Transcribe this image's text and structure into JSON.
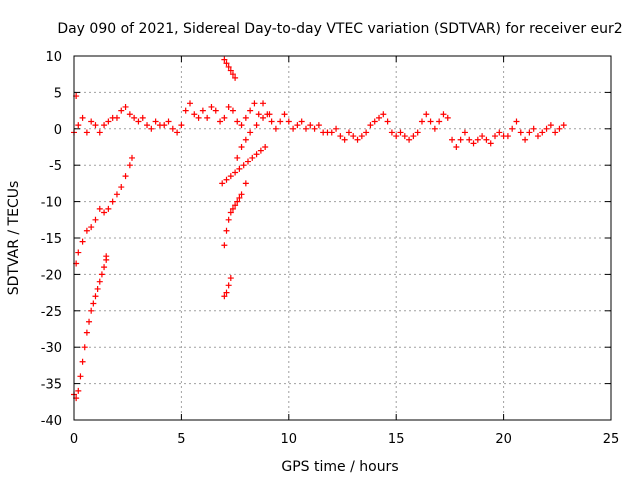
{
  "chart_data": {
    "type": "scatter",
    "title": "Day 090 of 2021, Sidereal Day-to-day VTEC variation (SDTVAR) for receiver eur2",
    "xlabel": "GPS time / hours",
    "ylabel": "SDTVAR / TECUs",
    "xlim": [
      0,
      25
    ],
    "ylim": [
      -40,
      10
    ],
    "x_ticks": [
      0,
      5,
      10,
      15,
      20,
      25
    ],
    "y_ticks": [
      10,
      5,
      0,
      -5,
      -10,
      -15,
      -20,
      -25,
      -30,
      -35,
      -40
    ],
    "x_tick_labels": [
      "0",
      "5",
      "10",
      "15",
      "20",
      "25"
    ],
    "y_tick_labels": [
      "10",
      "5",
      "0",
      "-5",
      "-10",
      "-15",
      "-20",
      "-25",
      "-30",
      "-35",
      "-40"
    ],
    "grid": true,
    "marker": "+",
    "color": "#ff0000",
    "series": [
      {
        "name": "main-band",
        "points": [
          [
            0.0,
            -0.5
          ],
          [
            0.1,
            4.5
          ],
          [
            0.2,
            0.5
          ],
          [
            0.4,
            1.5
          ],
          [
            0.6,
            -0.5
          ],
          [
            0.8,
            1.0
          ],
          [
            1.0,
            0.5
          ],
          [
            1.2,
            -0.5
          ],
          [
            1.4,
            0.5
          ],
          [
            1.6,
            1.0
          ],
          [
            1.8,
            1.5
          ],
          [
            2.0,
            1.5
          ],
          [
            2.2,
            2.5
          ],
          [
            2.4,
            3.0
          ],
          [
            2.6,
            2.0
          ],
          [
            2.8,
            1.5
          ],
          [
            3.0,
            1.0
          ],
          [
            3.2,
            1.5
          ],
          [
            3.4,
            0.5
          ],
          [
            3.6,
            0.0
          ],
          [
            3.8,
            1.0
          ],
          [
            4.0,
            0.5
          ],
          [
            4.2,
            0.5
          ],
          [
            4.4,
            1.0
          ],
          [
            4.6,
            0.0
          ],
          [
            4.8,
            -0.5
          ],
          [
            5.0,
            0.5
          ],
          [
            5.2,
            2.5
          ],
          [
            5.4,
            3.5
          ],
          [
            5.6,
            2.0
          ],
          [
            5.8,
            1.5
          ],
          [
            6.0,
            2.5
          ],
          [
            6.2,
            1.5
          ],
          [
            6.4,
            3.0
          ],
          [
            6.6,
            2.5
          ],
          [
            6.8,
            1.0
          ],
          [
            7.0,
            1.5
          ],
          [
            7.2,
            3.0
          ],
          [
            7.4,
            2.5
          ],
          [
            7.6,
            1.0
          ],
          [
            7.8,
            0.5
          ],
          [
            8.0,
            1.5
          ],
          [
            8.2,
            2.5
          ],
          [
            8.4,
            3.5
          ],
          [
            8.6,
            2.0
          ],
          [
            8.8,
            3.5
          ],
          [
            9.0,
            2.0
          ],
          [
            9.2,
            1.0
          ],
          [
            9.4,
            0.0
          ],
          [
            9.6,
            1.0
          ],
          [
            9.8,
            2.0
          ],
          [
            10.0,
            1.0
          ],
          [
            10.2,
            0.0
          ],
          [
            10.4,
            0.5
          ],
          [
            10.6,
            1.0
          ],
          [
            10.8,
            0.0
          ],
          [
            11.0,
            0.5
          ],
          [
            11.2,
            0.0
          ],
          [
            11.4,
            0.5
          ],
          [
            11.6,
            -0.5
          ],
          [
            11.8,
            -0.5
          ],
          [
            12.0,
            -0.5
          ],
          [
            12.2,
            0.0
          ],
          [
            12.4,
            -1.0
          ],
          [
            12.6,
            -1.5
          ],
          [
            12.8,
            -0.5
          ],
          [
            13.0,
            -1.0
          ],
          [
            13.2,
            -1.5
          ],
          [
            13.4,
            -1.0
          ],
          [
            13.6,
            -0.5
          ],
          [
            13.8,
            0.5
          ],
          [
            14.0,
            1.0
          ],
          [
            14.2,
            1.5
          ],
          [
            14.4,
            2.0
          ],
          [
            14.6,
            1.0
          ],
          [
            14.8,
            -0.5
          ],
          [
            15.0,
            -1.0
          ],
          [
            15.2,
            -0.5
          ],
          [
            15.4,
            -1.0
          ],
          [
            15.6,
            -1.5
          ],
          [
            15.8,
            -1.0
          ],
          [
            16.0,
            -0.5
          ],
          [
            16.2,
            1.0
          ],
          [
            16.4,
            2.0
          ],
          [
            16.6,
            1.0
          ],
          [
            16.8,
            0.0
          ],
          [
            17.0,
            1.0
          ],
          [
            17.2,
            2.0
          ],
          [
            17.4,
            1.5
          ],
          [
            17.6,
            -1.5
          ],
          [
            17.8,
            -2.5
          ],
          [
            18.0,
            -1.5
          ],
          [
            18.2,
            -0.5
          ],
          [
            18.4,
            -1.5
          ],
          [
            18.6,
            -2.0
          ],
          [
            18.8,
            -1.5
          ],
          [
            19.0,
            -1.0
          ],
          [
            19.2,
            -1.5
          ],
          [
            19.4,
            -2.0
          ],
          [
            19.6,
            -1.0
          ],
          [
            19.8,
            -0.5
          ],
          [
            20.0,
            -1.0
          ],
          [
            20.2,
            -1.0
          ],
          [
            20.4,
            0.0
          ],
          [
            20.6,
            1.0
          ],
          [
            20.8,
            -0.5
          ],
          [
            21.0,
            -1.5
          ],
          [
            21.2,
            -0.5
          ],
          [
            21.4,
            0.0
          ],
          [
            21.6,
            -1.0
          ],
          [
            21.8,
            -0.5
          ],
          [
            22.0,
            0.0
          ],
          [
            22.2,
            0.5
          ],
          [
            22.4,
            -0.5
          ],
          [
            22.6,
            0.0
          ],
          [
            22.8,
            0.5
          ]
        ]
      },
      {
        "name": "arc-upper-left",
        "points": [
          [
            0.1,
            -18.5
          ],
          [
            0.2,
            -17.0
          ],
          [
            0.4,
            -15.5
          ],
          [
            0.6,
            -14.0
          ],
          [
            0.8,
            -13.5
          ],
          [
            1.0,
            -12.5
          ],
          [
            1.2,
            -11.0
          ],
          [
            1.4,
            -11.5
          ],
          [
            1.6,
            -11.0
          ],
          [
            1.8,
            -10.0
          ],
          [
            2.0,
            -9.0
          ],
          [
            2.2,
            -8.0
          ],
          [
            2.4,
            -6.5
          ],
          [
            2.6,
            -5.0
          ],
          [
            2.7,
            -4.0
          ]
        ]
      },
      {
        "name": "arc-lower-left",
        "points": [
          [
            0.0,
            -36.5
          ],
          [
            0.1,
            -37.0
          ],
          [
            0.2,
            -36.0
          ],
          [
            0.3,
            -34.0
          ],
          [
            0.4,
            -32.0
          ],
          [
            0.5,
            -30.0
          ],
          [
            0.6,
            -28.0
          ],
          [
            0.7,
            -26.5
          ],
          [
            0.8,
            -25.0
          ],
          [
            0.9,
            -24.0
          ],
          [
            1.0,
            -23.0
          ],
          [
            1.1,
            -22.0
          ],
          [
            1.2,
            -21.0
          ],
          [
            1.3,
            -20.0
          ],
          [
            1.4,
            -19.0
          ],
          [
            1.5,
            -18.0
          ],
          [
            1.5,
            -17.5
          ]
        ]
      },
      {
        "name": "arc-mid-steep",
        "points": [
          [
            7.0,
            -16.0
          ],
          [
            7.1,
            -14.0
          ],
          [
            7.2,
            -12.5
          ],
          [
            7.3,
            -11.5
          ],
          [
            7.4,
            -11.0
          ],
          [
            7.5,
            -10.5
          ],
          [
            7.6,
            -10.0
          ],
          [
            7.7,
            -9.5
          ],
          [
            7.8,
            -9.0
          ],
          [
            8.0,
            -7.5
          ]
        ]
      },
      {
        "name": "arc-mid-low",
        "points": [
          [
            7.0,
            -23.0
          ],
          [
            7.1,
            -22.5
          ],
          [
            7.2,
            -21.5
          ],
          [
            7.3,
            -20.5
          ]
        ]
      },
      {
        "name": "arc-mid-rising",
        "points": [
          [
            6.9,
            -7.5
          ],
          [
            7.1,
            -7.0
          ],
          [
            7.3,
            -6.5
          ],
          [
            7.5,
            -6.0
          ],
          [
            7.7,
            -5.5
          ],
          [
            7.9,
            -5.0
          ],
          [
            8.1,
            -4.5
          ],
          [
            8.3,
            -4.0
          ],
          [
            8.5,
            -3.5
          ],
          [
            8.7,
            -3.0
          ],
          [
            8.9,
            -2.5
          ]
        ]
      },
      {
        "name": "arc-mid-upper",
        "points": [
          [
            7.6,
            -4.0
          ],
          [
            7.8,
            -2.5
          ],
          [
            8.0,
            -1.5
          ],
          [
            8.2,
            -0.5
          ],
          [
            8.5,
            0.5
          ],
          [
            8.8,
            1.5
          ],
          [
            9.1,
            2.0
          ]
        ]
      },
      {
        "name": "arc-top-cluster",
        "points": [
          [
            7.0,
            9.5
          ],
          [
            7.1,
            9.0
          ],
          [
            7.2,
            8.5
          ],
          [
            7.3,
            8.0
          ],
          [
            7.4,
            7.5
          ],
          [
            7.5,
            7.0
          ]
        ]
      }
    ]
  }
}
